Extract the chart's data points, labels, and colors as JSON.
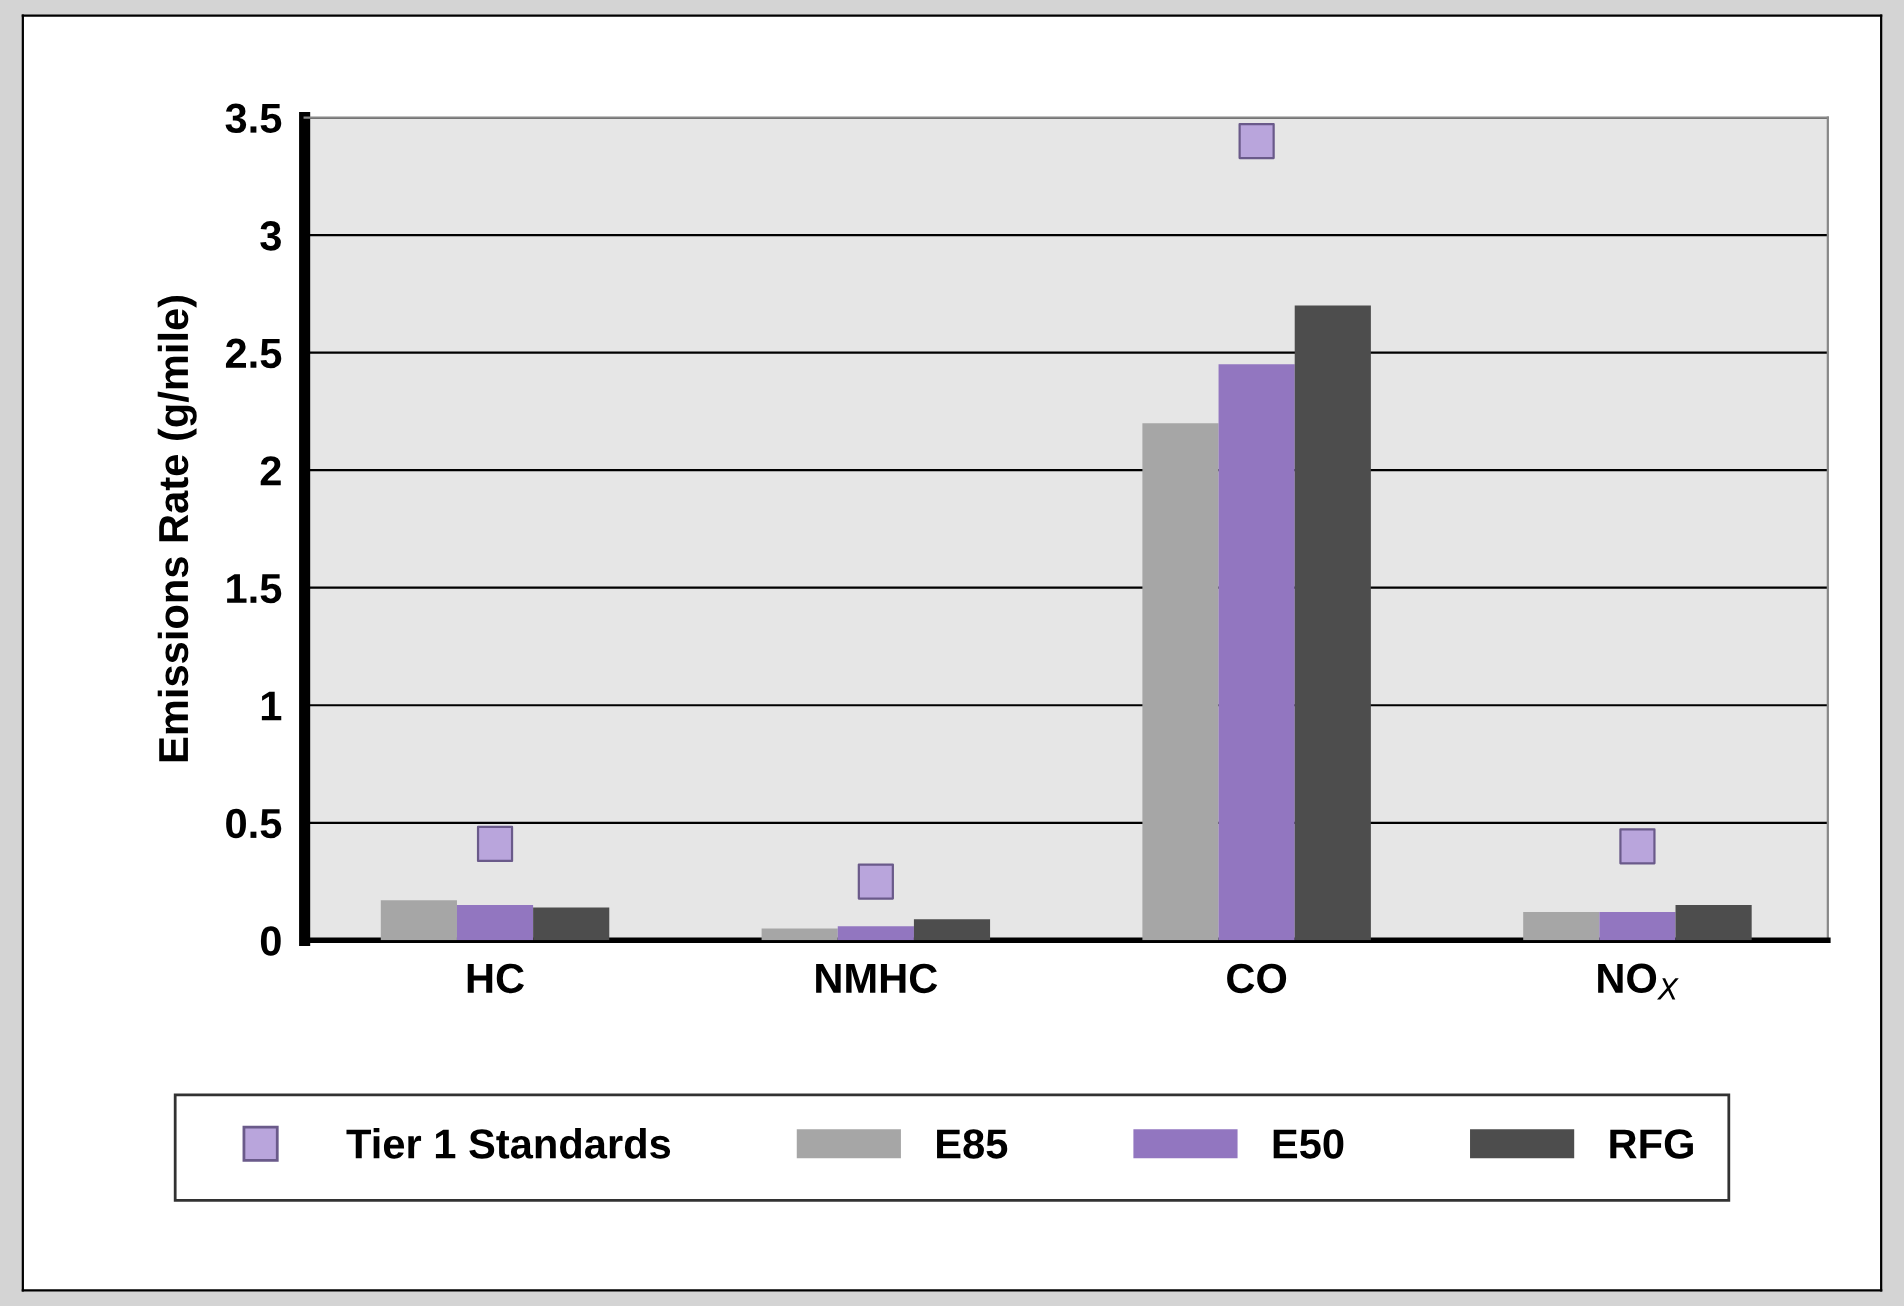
{
  "chart_data": {
    "type": "bar",
    "ylabel": "Emissions Rate (g/mile)",
    "categories": [
      "HC",
      "NMHC",
      "CO",
      "NO$_{X}$"
    ],
    "series": [
      {
        "name": "Tier 1 Standards",
        "type": "scatter",
        "color": "#b9a5dc",
        "values": [
          0.41,
          0.25,
          3.4,
          0.4
        ]
      },
      {
        "name": "E85",
        "color": "#a6a6a6",
        "values": [
          0.17,
          0.05,
          2.2,
          0.12
        ]
      },
      {
        "name": "E50",
        "color": "#9276c0",
        "values": [
          0.15,
          0.06,
          2.45,
          0.12
        ]
      },
      {
        "name": "RFG",
        "color": "#4d4d4d",
        "values": [
          0.14,
          0.09,
          2.7,
          0.15
        ]
      }
    ],
    "ylim": [
      0,
      3.5
    ],
    "yticks": [
      0,
      0.5,
      1,
      1.5,
      2,
      2.5,
      3,
      3.5
    ],
    "grid": "y",
    "legend": "bottom"
  }
}
